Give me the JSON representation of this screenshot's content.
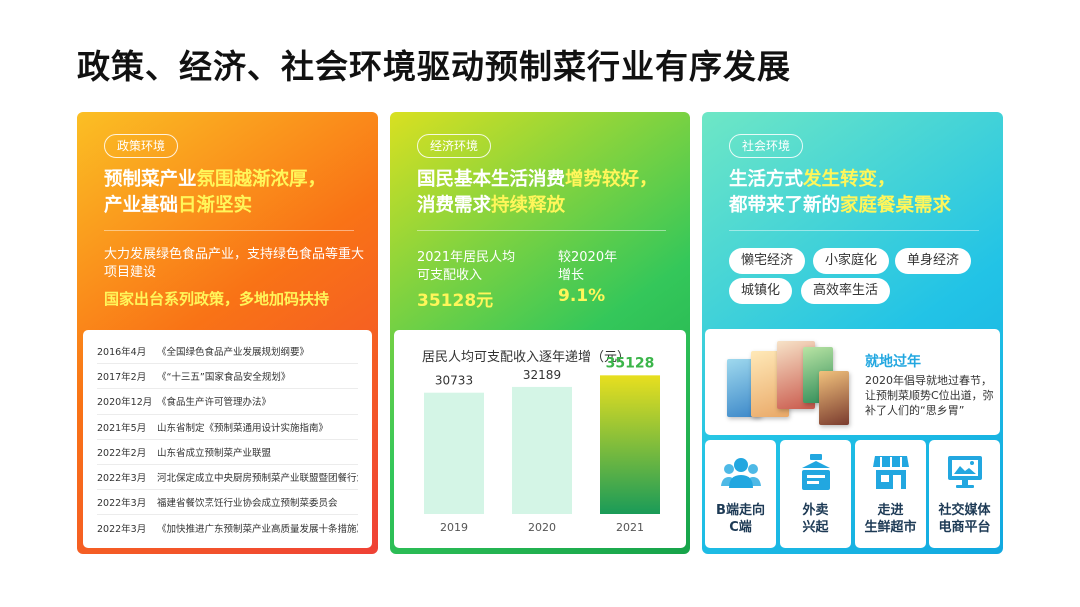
{
  "page_title": "政策、经济、社会环境驱动预制菜行业有序发展",
  "policy": {
    "tag": "政策环境",
    "headline_line1_part1": "预制菜产业",
    "headline_line1_part2": "氛围越渐浓厚，",
    "headline_line2_part1": "产业基础",
    "headline_line2_part2": "日渐坚实",
    "desc": "大力发展绿色食品产业，支持绿色食品等重大项目建设",
    "emphasis": "国家出台系列政策，多地加码扶持",
    "timeline": [
      {
        "date": "2016年4月",
        "text": "《全国绿色食品产业发展规划纲要》"
      },
      {
        "date": "2017年2月",
        "text": "《“十三五”国家食品安全规划》"
      },
      {
        "date": "2020年12月",
        "text": "《食品生产许可管理办法》"
      },
      {
        "date": "2021年5月",
        "text": "山东省制定《预制菜通用设计实施指南》"
      },
      {
        "date": "2022年2月",
        "text": "山东省成立预制菜产业联盟"
      },
      {
        "date": "2022年3月",
        "text": "河北保定成立中央厨房预制菜产业联盟暨团餐行业协会"
      },
      {
        "date": "2022年3月",
        "text": "福建省餐饮烹饪行业协会成立预制菜委员会"
      },
      {
        "date": "2022年3月",
        "text": "《加快推进广东预制菜产业高质量发展十条措施》"
      }
    ]
  },
  "economy": {
    "tag": "经济环境",
    "headline_line1_part1": "国民基本生活消费",
    "headline_line1_part2": "增势较好，",
    "headline_line2_part1": "消费需求",
    "headline_line2_part2": "持续释放",
    "stat1_label_line1": "2021年居民人均",
    "stat1_label_line2": "可支配收入",
    "stat1_value": "35128元",
    "stat2_label_line1": "较2020年",
    "stat2_label_line2": "增长",
    "stat2_value": "9.1%",
    "chart_data": {
      "type": "bar",
      "title": "居民人均可支配收入逐年递增（元）",
      "categories": [
        "2019",
        "2020",
        "2021"
      ],
      "values": [
        30733,
        32189,
        35128
      ],
      "ylim": [
        0,
        38000
      ],
      "grid": false,
      "bar_color": "#d4f5e6",
      "highlight_color_top": "#e8df1f",
      "highlight_color_bottom": "#1a9b58",
      "highlight_label_color": "#3bb54a"
    }
  },
  "society": {
    "tag": "社会环境",
    "headline_line1_part1": "生活方式",
    "headline_line1_part2": "发生转变，",
    "headline_line2_part1": "都带来了新的",
    "headline_line2_part2": "家庭餐桌需求",
    "chips": [
      "懒宅经济",
      "小家庭化",
      "单身经济",
      "城镇化",
      "高效率生活"
    ],
    "feature_title": "就地过年",
    "feature_desc": "2020年倡导就地过春节，让预制菜顺势C位出道，弥补了人们的“思乡胃”",
    "trends": [
      {
        "line1": "B端走向",
        "line2": "C端",
        "icon": "people-group-icon"
      },
      {
        "line1": "外卖",
        "line2": "兴起",
        "icon": "delivery-box-icon"
      },
      {
        "line1": "走进",
        "line2": "生鲜超市",
        "icon": "storefront-icon"
      },
      {
        "line1": "社交媒体",
        "line2": "电商平台",
        "icon": "social-media-screen-icon"
      }
    ],
    "accent_color": "#22a7e0"
  }
}
